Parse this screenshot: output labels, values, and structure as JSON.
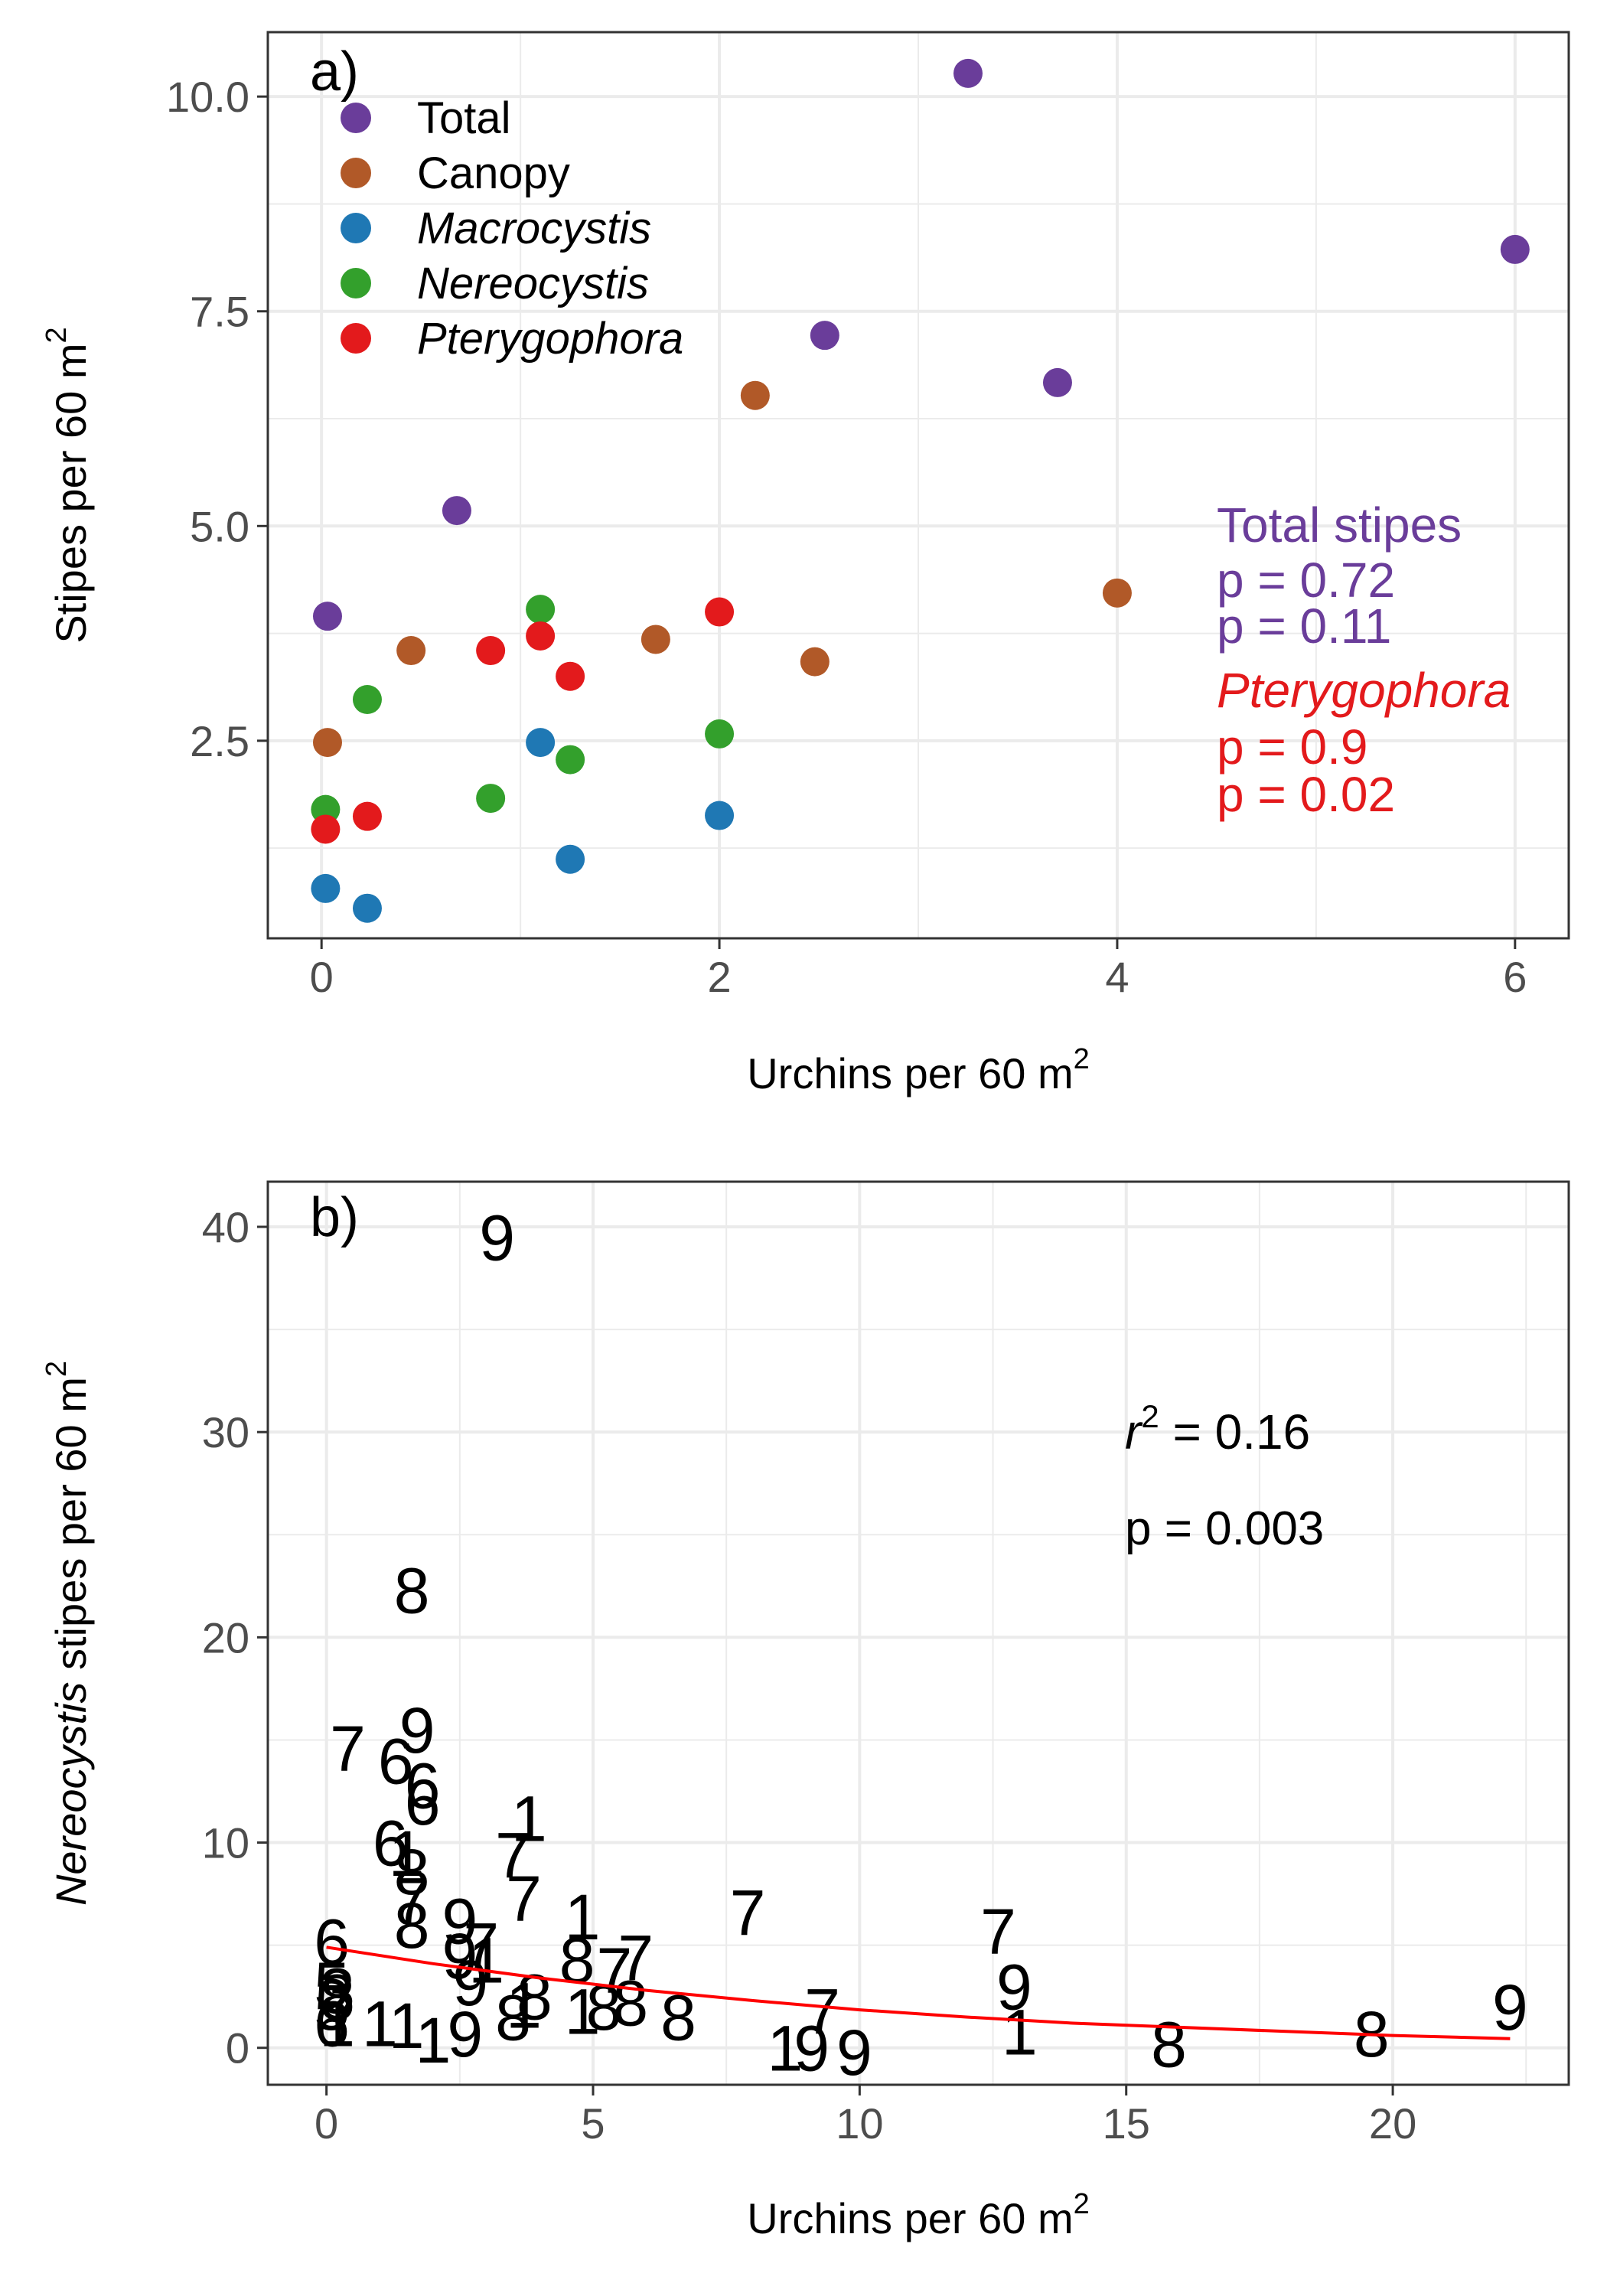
{
  "colors": {
    "total": "#6a3d9a",
    "canopy": "#b15928",
    "macrocystis": "#1f78b4",
    "nereocystis": "#33a02c",
    "pterygophora": "#e31a1c",
    "fit_line": "#ff0000",
    "grid": "#ebebeb",
    "panel_border": "#333333"
  },
  "chart_data": [
    {
      "panel_tag": "a)",
      "type": "scatter",
      "xlabel": "Urchins per 60 m",
      "xlabel_sup": "2",
      "ylabel": "Stipes per 60 m",
      "ylabel_sup": "2",
      "xlim": [
        -0.27,
        6.27
      ],
      "ylim": [
        0.2,
        10.75
      ],
      "x_ticks": [
        0,
        2,
        4,
        6
      ],
      "x_tick_labels": [
        "0",
        "2",
        "4",
        "6"
      ],
      "y_ticks": [
        2.5,
        5.0,
        7.5,
        10.0
      ],
      "y_tick_labels": [
        "2.5",
        "5.0",
        "7.5",
        "10.0"
      ],
      "grid": true,
      "legend_position": "top-left",
      "series": [
        {
          "name": "Total",
          "italic": false,
          "color_key": "total",
          "points": [
            [
              0.03,
              3.95
            ],
            [
              0.68,
              5.18
            ],
            [
              2.53,
              7.22
            ],
            [
              3.25,
              10.27
            ],
            [
              3.7,
              6.67
            ],
            [
              6.0,
              8.22
            ]
          ]
        },
        {
          "name": "Canopy",
          "italic": false,
          "color_key": "canopy",
          "points": [
            [
              0.03,
              2.48
            ],
            [
              0.45,
              3.55
            ],
            [
              1.68,
              3.68
            ],
            [
              2.18,
              6.52
            ],
            [
              2.48,
              3.42
            ],
            [
              4.0,
              4.22
            ]
          ]
        },
        {
          "name": "Macrocystis",
          "italic": true,
          "color_key": "macrocystis",
          "points": [
            [
              0.02,
              0.78
            ],
            [
              0.23,
              0.55
            ],
            [
              1.1,
              2.48
            ],
            [
              1.25,
              1.12
            ],
            [
              2.0,
              1.63
            ]
          ]
        },
        {
          "name": "Nereocystis",
          "italic": true,
          "color_key": "nereocystis",
          "points": [
            [
              0.02,
              1.7
            ],
            [
              0.23,
              2.98
            ],
            [
              0.85,
              1.83
            ],
            [
              1.1,
              4.03
            ],
            [
              1.25,
              2.28
            ],
            [
              2.0,
              2.58
            ]
          ]
        },
        {
          "name": "Pterygophora",
          "italic": true,
          "color_key": "pterygophora",
          "points": [
            [
              0.02,
              1.47
            ],
            [
              0.23,
              1.62
            ],
            [
              0.85,
              3.55
            ],
            [
              1.1,
              3.72
            ],
            [
              1.25,
              3.25
            ],
            [
              2.0,
              4.0
            ]
          ]
        }
      ],
      "annotations": [
        {
          "text": "Total stipes",
          "italic": false,
          "color_key": "total"
        },
        {
          "text": "p = 0.72",
          "italic": false,
          "color_key": "total"
        },
        {
          "text": "p = 0.11",
          "italic": false,
          "color_key": "total"
        },
        {
          "text": "Pterygophora",
          "italic": true,
          "color_key": "pterygophora"
        },
        {
          "text": "p = 0.9",
          "italic": false,
          "color_key": "pterygophora"
        },
        {
          "text": "p = 0.02",
          "italic": false,
          "color_key": "pterygophora"
        }
      ]
    },
    {
      "panel_tag": "b)",
      "type": "scatter",
      "marker": "text",
      "xlabel": "Urchins per 60 m",
      "xlabel_sup": "2",
      "ylabel_italic": "Nereocystis",
      "ylabel": " stipes per 60 m",
      "ylabel_sup": "2",
      "xlim": [
        -1.1,
        23.3
      ],
      "ylim": [
        -1.8,
        42.2
      ],
      "x_ticks": [
        0,
        5,
        10,
        15,
        20
      ],
      "x_tick_labels": [
        "0",
        "5",
        "10",
        "15",
        "20"
      ],
      "y_ticks": [
        0,
        10,
        20,
        30,
        40
      ],
      "y_tick_labels": [
        "0",
        "10",
        "20",
        "30",
        "40"
      ],
      "grid": true,
      "points": [
        {
          "x": 3.2,
          "y": 39.5,
          "label": "9"
        },
        {
          "x": 1.6,
          "y": 22.3,
          "label": "8"
        },
        {
          "x": 0.4,
          "y": 14.6,
          "label": "7"
        },
        {
          "x": 1.7,
          "y": 15.5,
          "label": "9"
        },
        {
          "x": 1.3,
          "y": 14.0,
          "label": "6"
        },
        {
          "x": 1.8,
          "y": 12.8,
          "label": "6"
        },
        {
          "x": 1.8,
          "y": 12.0,
          "label": "6"
        },
        {
          "x": 3.8,
          "y": 11.2,
          "label": "1"
        },
        {
          "x": 1.2,
          "y": 10.0,
          "label": "6"
        },
        {
          "x": 1.5,
          "y": 9.5,
          "label": "1"
        },
        {
          "x": 3.5,
          "y": 9.4,
          "label": "7"
        },
        {
          "x": 1.6,
          "y": 8.6,
          "label": "8"
        },
        {
          "x": 3.7,
          "y": 7.3,
          "label": "7"
        },
        {
          "x": 1.6,
          "y": 7.2,
          "label": "7"
        },
        {
          "x": 2.5,
          "y": 6.2,
          "label": "9"
        },
        {
          "x": 1.6,
          "y": 6.0,
          "label": "8"
        },
        {
          "x": 4.8,
          "y": 6.4,
          "label": "1"
        },
        {
          "x": 7.9,
          "y": 6.6,
          "label": "7"
        },
        {
          "x": 12.6,
          "y": 5.7,
          "label": "7"
        },
        {
          "x": 0.1,
          "y": 5.2,
          "label": "6"
        },
        {
          "x": 2.9,
          "y": 5.0,
          "label": "7"
        },
        {
          "x": 3.0,
          "y": 4.3,
          "label": "1"
        },
        {
          "x": 2.5,
          "y": 4.5,
          "label": "9"
        },
        {
          "x": 4.7,
          "y": 4.3,
          "label": "8"
        },
        {
          "x": 5.8,
          "y": 4.4,
          "label": "7"
        },
        {
          "x": 5.4,
          "y": 3.8,
          "label": "7"
        },
        {
          "x": 2.7,
          "y": 3.2,
          "label": "9"
        },
        {
          "x": 12.9,
          "y": 3.0,
          "label": "9"
        },
        {
          "x": 22.2,
          "y": 2.0,
          "label": "9"
        },
        {
          "x": 9.3,
          "y": 1.8,
          "label": "7"
        },
        {
          "x": 0.1,
          "y": 3.1,
          "label": "5"
        },
        {
          "x": 0.2,
          "y": 2.8,
          "label": "3"
        },
        {
          "x": 0.1,
          "y": 2.0,
          "label": "5"
        },
        {
          "x": 0.2,
          "y": 2.5,
          "label": "8"
        },
        {
          "x": 3.9,
          "y": 2.5,
          "label": "8"
        },
        {
          "x": 3.7,
          "y": 2.1,
          "label": "1"
        },
        {
          "x": 5.2,
          "y": 2.0,
          "label": "8"
        },
        {
          "x": 5.7,
          "y": 2.2,
          "label": "8"
        },
        {
          "x": 4.8,
          "y": 1.8,
          "label": "1"
        },
        {
          "x": 3.5,
          "y": 1.5,
          "label": "8"
        },
        {
          "x": 6.6,
          "y": 1.5,
          "label": "8"
        },
        {
          "x": 0.1,
          "y": 1.2,
          "label": "6"
        },
        {
          "x": 0.2,
          "y": 1.2,
          "label": "1"
        },
        {
          "x": 1.0,
          "y": 1.2,
          "label": "1"
        },
        {
          "x": 1.5,
          "y": 1.1,
          "label": "1"
        },
        {
          "x": 2.0,
          "y": 0.4,
          "label": "1"
        },
        {
          "x": 2.6,
          "y": 0.7,
          "label": "9"
        },
        {
          "x": 13.0,
          "y": 0.8,
          "label": "1"
        },
        {
          "x": 8.6,
          "y": 0.0,
          "label": "1"
        },
        {
          "x": 9.1,
          "y": 0.0,
          "label": "9"
        },
        {
          "x": 9.9,
          "y": -0.2,
          "label": "9"
        },
        {
          "x": 15.8,
          "y": 0.2,
          "label": "8"
        },
        {
          "x": 19.6,
          "y": 0.7,
          "label": "8"
        }
      ],
      "fit_line": {
        "type": "line",
        "x": [
          0,
          2,
          4,
          6,
          8,
          10,
          12,
          14,
          16,
          18,
          20,
          22.2
        ],
        "y": [
          4.9,
          4.1,
          3.4,
          2.8,
          2.3,
          1.85,
          1.5,
          1.2,
          1.0,
          0.8,
          0.6,
          0.45
        ]
      },
      "annotations": {
        "r2_symbol": "r",
        "r2_sup": "2",
        "r2_eq": " = 0.16",
        "p_value": "p = 0.003"
      }
    }
  ]
}
